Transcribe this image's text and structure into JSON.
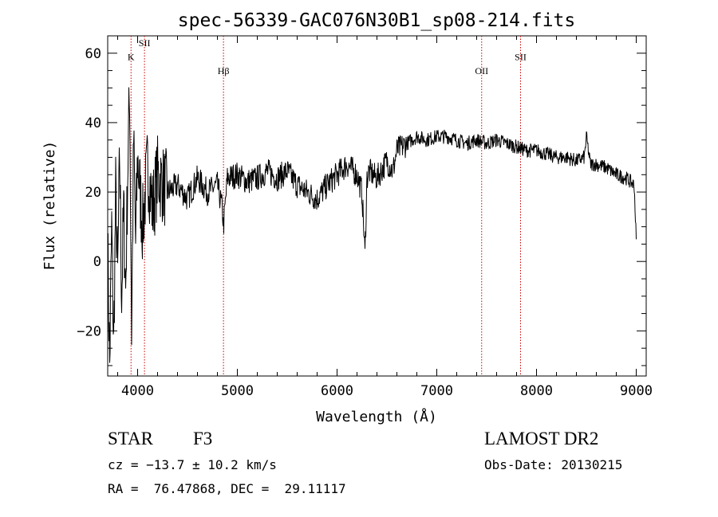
{
  "chart_data": {
    "type": "line",
    "title": "spec-56339-GAC076N30B1_sp08-214.fits",
    "xlabel": "Wavelength (Å)",
    "ylabel": "Flux (relative)",
    "xlim": [
      3700,
      9100
    ],
    "ylim": [
      -33,
      65
    ],
    "x_ticks": [
      4000,
      5000,
      6000,
      7000,
      8000,
      9000
    ],
    "x_tick_labels": [
      "4000",
      "5000",
      "6000",
      "7000",
      "8000",
      "9000"
    ],
    "y_ticks": [
      -20,
      0,
      20,
      40,
      60
    ],
    "y_tick_labels": [
      "−20",
      "0",
      "20",
      "40",
      "60"
    ],
    "grid": false,
    "line_color": "#000000",
    "series": [
      {
        "x": [
          3700,
          3720,
          3740,
          3760,
          3780,
          3800,
          3820,
          3840,
          3860,
          3880,
          3900,
          3920,
          3940,
          3960,
          3980,
          4000,
          4050,
          4100,
          4150,
          4200,
          4300,
          4400,
          4500,
          4600,
          4700,
          4800,
          4850,
          4861,
          4900,
          5000,
          5100,
          5200,
          5300,
          5400,
          5500,
          5600,
          5700,
          5800,
          5900,
          6000,
          6100,
          6200,
          6250,
          6280,
          6300,
          6320,
          6400,
          6500,
          6560,
          6600,
          6700,
          6800,
          6900,
          7000,
          7100,
          7200,
          7300,
          7400,
          7500,
          7600,
          7700,
          7800,
          7900,
          8000,
          8100,
          8200,
          8300,
          8400,
          8480,
          8500,
          8540,
          8600,
          8700,
          8800,
          8900,
          8980,
          9000
        ],
        "y": [
          5,
          -30,
          10,
          -25,
          20,
          -5,
          30,
          -10,
          15,
          -8,
          25,
          50,
          -20,
          35,
          5,
          30,
          10,
          28,
          15,
          25,
          20,
          22,
          18,
          24,
          20,
          22,
          15,
          10,
          24,
          25,
          23,
          24,
          26,
          24,
          26,
          22,
          20,
          18,
          22,
          25,
          28,
          25,
          20,
          2,
          24,
          26,
          24,
          29,
          26,
          32,
          34,
          36,
          35,
          36,
          36,
          35,
          34,
          35,
          34,
          35,
          34,
          33,
          32,
          32,
          31,
          30,
          30,
          29,
          30,
          36,
          28,
          28,
          27,
          25,
          24,
          22,
          6
        ],
        "noise_amplitude": 3
      }
    ],
    "annotations": [
      {
        "label": "K",
        "x": 3934,
        "label_y": 58
      },
      {
        "label": "SII",
        "x": 4069,
        "label_y": 62
      },
      {
        "label": "Hβ",
        "x": 4861,
        "label_y": 54
      },
      {
        "label": "OII",
        "x": 7450,
        "label_y": 54
      },
      {
        "label": "SII",
        "x": 7840,
        "label_y": 58
      }
    ],
    "annotation_color": "#cc0000"
  },
  "info": {
    "object_type": "STAR",
    "subclass": "F3",
    "survey": "LAMOST DR2",
    "cz": "cz = −13.7 ± 10.2 km/s",
    "obs_date": "Obs-Date: 20130215",
    "coords": "RA =  76.47868, DEC =  29.11117"
  }
}
